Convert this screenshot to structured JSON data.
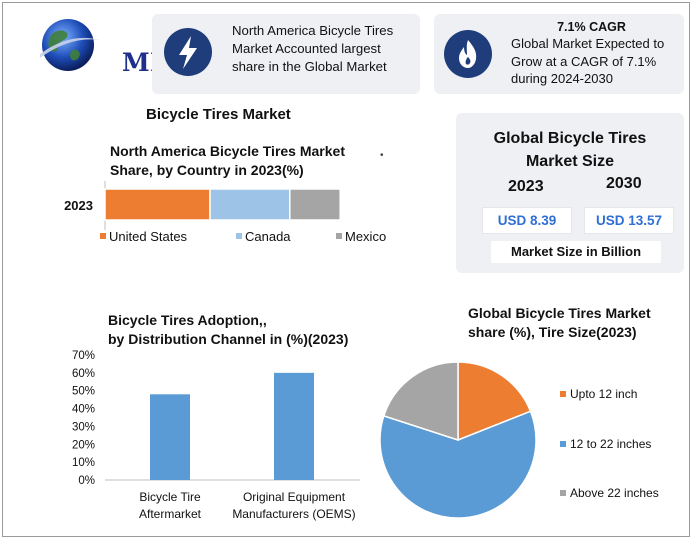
{
  "brand": {
    "logo_text": "MMR"
  },
  "cards": {
    "card1_text": "North America Bicycle Tires Market Accounted largest share in the Global Market",
    "card1_icon": "lightning-bolt-icon",
    "card2_title": "7.1% CAGR",
    "card2_text": "Global Market Expected to Grow at a CAGR of 7.1% during 2024-2030",
    "card2_icon": "flame-icon"
  },
  "main_title": "Bicycle Tires Market",
  "global_size": {
    "title_line1": "Global Bicycle Tires",
    "title_line2": "Market Size",
    "year1": "2023",
    "year2": "2030",
    "value1": "USD 8.39",
    "value2": "USD 13.57",
    "unit": "Market Size in Billion"
  },
  "colors": {
    "orange": "#ED7D31",
    "light_blue": "#9DC3E6",
    "gray": "#A5A5A5",
    "blue": "#5B9BD5",
    "dark_blue": "#1f3d7a"
  },
  "chart_data": [
    {
      "type": "bar",
      "orientation": "horizontal-stacked",
      "title_line1": "North America Bicycle Tires Market",
      "title_line2": "Share, by Country in 2023(%)",
      "categories": [
        "2023"
      ],
      "series": [
        {
          "name": "United States",
          "values": [
            50
          ],
          "color": "#ED7D31"
        },
        {
          "name": "Canada",
          "values": [
            38
          ],
          "color": "#9DC3E6"
        },
        {
          "name": "Mexico",
          "values": [
            24
          ],
          "color": "#A5A5A5"
        }
      ],
      "legend": "bottom",
      "grid": false
    },
    {
      "type": "bar",
      "title_line1": "Bicycle Tires Adoption,,",
      "title_line2": "by Distribution Channel in (%)(2023)",
      "categories": [
        [
          "Bicycle Tire",
          "Aftermarket"
        ],
        [
          "Original Equipment",
          "Manufacturers (OEMS)"
        ]
      ],
      "values": [
        48,
        60
      ],
      "color": "#5B9BD5",
      "ylim": [
        0,
        70
      ],
      "yticks": [
        "0%",
        "10%",
        "20%",
        "30%",
        "40%",
        "50%",
        "60%",
        "70%"
      ],
      "grid": false
    },
    {
      "type": "pie",
      "title_line1": "Global Bicycle Tires Market",
      "title_line2": "share (%), Tire Size(2023)",
      "slices": [
        {
          "label": "Upto 12 inch",
          "value": 19,
          "color": "#ED7D31"
        },
        {
          "label": "12 to 22 inches",
          "value": 61,
          "color": "#5B9BD5"
        },
        {
          "label": "Above 22 inches",
          "value": 20,
          "color": "#A5A5A5"
        }
      ],
      "legend": "right"
    }
  ]
}
